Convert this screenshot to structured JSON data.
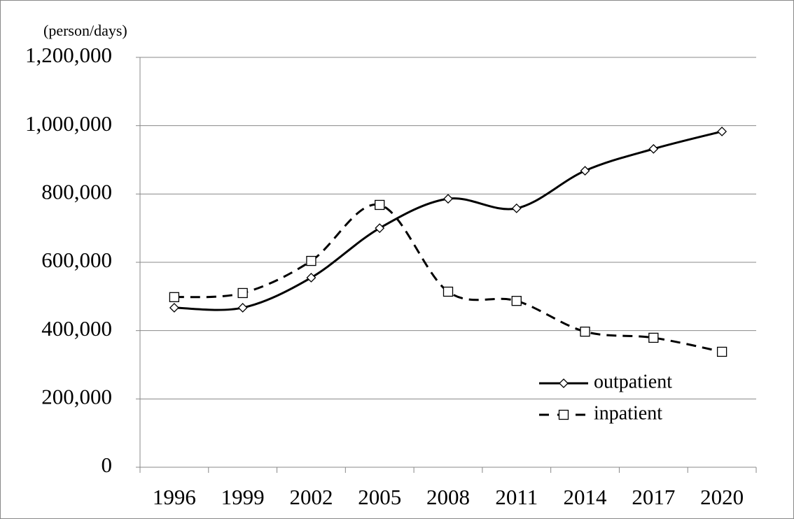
{
  "chart_data": {
    "type": "line",
    "y_label": "(person/days)",
    "categories": [
      "1996",
      "1999",
      "2002",
      "2005",
      "2008",
      "2011",
      "2014",
      "2017",
      "2020"
    ],
    "series": [
      {
        "name": "outpatient",
        "color": "#000000",
        "dash": "solid",
        "marker": "diamond",
        "values": [
          467000,
          467000,
          555000,
          700000,
          786000,
          758000,
          868000,
          932000,
          983000
        ]
      },
      {
        "name": "inpatient",
        "color": "#000000",
        "dash": "dashed",
        "marker": "square",
        "values": [
          498000,
          510000,
          604000,
          768000,
          514000,
          487000,
          397000,
          379000,
          338000
        ]
      }
    ],
    "ylim": [
      0,
      1200000
    ],
    "yticks": [
      {
        "value": 0,
        "label": "0"
      },
      {
        "value": 200000,
        "label": "200,000"
      },
      {
        "value": 400000,
        "label": "400,000"
      },
      {
        "value": 600000,
        "label": "600,000"
      },
      {
        "value": 800000,
        "label": "800,000"
      },
      {
        "value": 1000000,
        "label": "1,000,000"
      },
      {
        "value": 1200000,
        "label": "1,200,000"
      }
    ],
    "grid": true,
    "legend": "lower right",
    "smooth": true
  }
}
